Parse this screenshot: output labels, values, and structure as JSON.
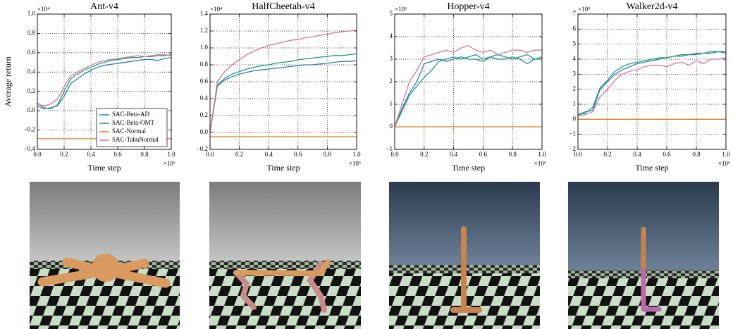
{
  "chart_data": [
    {
      "type": "line",
      "title": "Ant-v4",
      "xlabel": "Time step",
      "ylabel": "Average return",
      "x_multiplier": "×10⁶",
      "y_multiplier": "×10⁴",
      "x": [
        0,
        0.05,
        0.1,
        0.15,
        0.2,
        0.25,
        0.3,
        0.35,
        0.4,
        0.45,
        0.5,
        0.55,
        0.6,
        0.65,
        0.7,
        0.75,
        0.8,
        0.85,
        0.9,
        0.95,
        1.0
      ],
      "xlim": [
        0,
        1
      ],
      "xticks": [
        {
          "value": 0,
          "label": "0.0"
        },
        0.2,
        0.4,
        0.6,
        0.8,
        {
          "value": 1,
          "label": "1.0"
        }
      ],
      "ylim": [
        -0.4,
        1.0
      ],
      "yticks": [
        {
          "value": -0.4,
          "label": "−0.4"
        },
        {
          "value": -0.2,
          "label": "−0.2"
        },
        {
          "value": 0,
          "label": "0.0"
        },
        0.2,
        0.4,
        0.6,
        0.8,
        {
          "value": 1,
          "label": "1.0"
        }
      ],
      "grid": true,
      "legend": "lower right",
      "series": [
        {
          "name": "SAC-Beta-AD",
          "color": "#2e7db5",
          "values": [
            0.05,
            0.02,
            0.03,
            0.05,
            0.15,
            0.28,
            0.33,
            0.38,
            0.42,
            0.45,
            0.47,
            0.48,
            0.49,
            0.5,
            0.51,
            0.52,
            0.53,
            0.53,
            0.52,
            0.54,
            0.55
          ]
        },
        {
          "name": "SAC-Beta-OMT",
          "color": "#1a9e77",
          "values": [
            0.08,
            0.03,
            0.02,
            0.06,
            0.2,
            0.33,
            0.38,
            0.42,
            0.45,
            0.48,
            0.5,
            0.52,
            0.53,
            0.54,
            0.55,
            0.55,
            0.56,
            0.56,
            0.57,
            0.57,
            0.58
          ]
        },
        {
          "name": "SAC-Normal",
          "color": "#e6781e",
          "values": [
            -0.29,
            -0.29,
            -0.29,
            -0.29,
            -0.29,
            -0.29,
            -0.29,
            -0.29,
            -0.29,
            -0.29,
            -0.29,
            -0.29,
            -0.29,
            -0.29,
            -0.29,
            -0.29,
            -0.29,
            -0.29,
            -0.29,
            -0.29,
            -0.29
          ]
        },
        {
          "name": "SAC-TahnNormal",
          "color": "#d9739e",
          "values": [
            0.07,
            0.05,
            0.07,
            0.12,
            0.25,
            0.36,
            0.4,
            0.44,
            0.47,
            0.5,
            0.52,
            0.53,
            0.54,
            0.55,
            0.56,
            0.57,
            0.56,
            0.57,
            0.58,
            0.58,
            0.57
          ]
        }
      ]
    },
    {
      "type": "line",
      "title": "HalfCheetah-v4",
      "xlabel": "Time step",
      "x_multiplier": "×10⁶",
      "y_multiplier": "×10⁴",
      "x": [
        0,
        0.05,
        0.1,
        0.15,
        0.2,
        0.25,
        0.3,
        0.35,
        0.4,
        0.45,
        0.5,
        0.55,
        0.6,
        0.65,
        0.7,
        0.75,
        0.8,
        0.85,
        0.9,
        0.95,
        1.0
      ],
      "xlim": [
        0,
        1
      ],
      "xticks": [
        {
          "value": 0,
          "label": "0.0"
        },
        0.2,
        0.4,
        0.6,
        0.8,
        {
          "value": 1,
          "label": "1.0"
        }
      ],
      "ylim": [
        -0.2,
        1.4
      ],
      "yticks": [
        {
          "value": -0.2,
          "label": "−0.2"
        },
        {
          "value": 0,
          "label": "0.0"
        },
        0.2,
        0.4,
        0.6,
        0.8,
        {
          "value": 1,
          "label": "1.0"
        },
        1.2,
        1.4
      ],
      "grid": true,
      "series": [
        {
          "color": "#2e7db5",
          "values": [
            0,
            0.55,
            0.62,
            0.66,
            0.69,
            0.71,
            0.73,
            0.74,
            0.75,
            0.76,
            0.77,
            0.78,
            0.79,
            0.8,
            0.8,
            0.81,
            0.82,
            0.83,
            0.84,
            0.84,
            0.85
          ]
        },
        {
          "color": "#1a9e77",
          "values": [
            0,
            0.56,
            0.64,
            0.69,
            0.72,
            0.75,
            0.77,
            0.79,
            0.8,
            0.82,
            0.83,
            0.84,
            0.86,
            0.87,
            0.88,
            0.89,
            0.9,
            0.91,
            0.91,
            0.92,
            0.93
          ]
        },
        {
          "color": "#e6781e",
          "values": [
            -0.05,
            -0.05,
            -0.05,
            -0.05,
            -0.05,
            -0.05,
            -0.05,
            -0.05,
            -0.05,
            -0.05,
            -0.05,
            -0.05,
            -0.05,
            -0.05,
            -0.05,
            -0.05,
            -0.05,
            -0.05,
            -0.05,
            -0.05,
            -0.05
          ]
        },
        {
          "color": "#d9739e",
          "values": [
            0,
            0.6,
            0.72,
            0.8,
            0.86,
            0.92,
            0.96,
            1.0,
            1.03,
            1.05,
            1.07,
            1.09,
            1.1,
            1.12,
            1.13,
            1.15,
            1.16,
            1.18,
            1.19,
            1.2,
            1.21
          ]
        }
      ]
    },
    {
      "type": "line",
      "title": "Hopper-v4",
      "xlabel": "Time step",
      "x_multiplier": "×10⁶",
      "y_multiplier": "×10³",
      "x": [
        0,
        0.05,
        0.1,
        0.15,
        0.2,
        0.25,
        0.3,
        0.35,
        0.4,
        0.45,
        0.5,
        0.55,
        0.6,
        0.65,
        0.7,
        0.75,
        0.8,
        0.85,
        0.9,
        0.95,
        1.0
      ],
      "xlim": [
        0,
        1
      ],
      "xticks": [
        {
          "value": 0,
          "label": "0.0"
        },
        0.2,
        0.4,
        0.6,
        0.8,
        {
          "value": 1,
          "label": "1.0"
        }
      ],
      "ylim": [
        -1,
        5
      ],
      "yticks": [
        {
          "value": -1,
          "label": "−1"
        },
        0,
        1,
        2,
        3,
        4,
        5
      ],
      "grid": true,
      "series": [
        {
          "color": "#2e7db5",
          "values": [
            0,
            0.8,
            1.5,
            2.0,
            2.8,
            2.9,
            3.0,
            2.9,
            3.0,
            3.1,
            3.0,
            3.0,
            2.9,
            3.1,
            3.0,
            3.0,
            3.1,
            3.0,
            2.8,
            3.0,
            3.0
          ]
        },
        {
          "color": "#1a9e77",
          "values": [
            0,
            0.7,
            1.4,
            1.8,
            2.2,
            2.5,
            2.9,
            3.0,
            3.1,
            3.0,
            3.1,
            3.2,
            3.0,
            3.1,
            3.2,
            3.1,
            3.0,
            3.1,
            3.2,
            3.0,
            3.1
          ]
        },
        {
          "color": "#e6781e",
          "values": [
            0,
            0,
            0,
            0,
            0,
            0,
            0,
            0,
            0,
            0,
            0,
            0,
            0,
            0,
            0,
            0,
            0,
            0,
            0,
            0,
            0
          ]
        },
        {
          "color": "#d9739e",
          "values": [
            0,
            1.0,
            2.0,
            2.5,
            3.1,
            3.2,
            3.3,
            3.4,
            3.3,
            3.5,
            3.6,
            3.4,
            3.3,
            3.4,
            3.2,
            3.3,
            3.4,
            3.4,
            3.3,
            3.4,
            3.4
          ]
        }
      ]
    },
    {
      "type": "line",
      "title": "Walker2d-v4",
      "xlabel": "Time step",
      "x_multiplier": "×10⁶",
      "y_multiplier": "×10³",
      "x": [
        0,
        0.05,
        0.1,
        0.15,
        0.2,
        0.25,
        0.3,
        0.35,
        0.4,
        0.45,
        0.5,
        0.55,
        0.6,
        0.65,
        0.7,
        0.75,
        0.8,
        0.85,
        0.9,
        0.95,
        1.0
      ],
      "xlim": [
        0,
        1
      ],
      "xticks": [
        {
          "value": 0,
          "label": "0.0"
        },
        0.2,
        0.4,
        0.6,
        0.8,
        {
          "value": 1,
          "label": "1.0"
        }
      ],
      "ylim": [
        -2,
        7
      ],
      "yticks": [
        {
          "value": -2,
          "label": "−2"
        },
        {
          "value": -1,
          "label": "−1"
        },
        0,
        1,
        2,
        3,
        4,
        5,
        6,
        7
      ],
      "grid": true,
      "series": [
        {
          "color": "#2e7db5",
          "values": [
            0.3,
            0.5,
            0.6,
            2.0,
            2.5,
            3.0,
            3.3,
            3.5,
            3.7,
            3.8,
            3.9,
            4.0,
            4.1,
            4.2,
            4.2,
            4.3,
            4.3,
            4.4,
            4.4,
            4.5,
            4.5
          ]
        },
        {
          "color": "#1a9e77",
          "values": [
            0.3,
            0.4,
            0.8,
            2.1,
            2.6,
            3.2,
            3.5,
            3.7,
            3.8,
            3.9,
            4.0,
            4.1,
            4.1,
            4.2,
            4.3,
            4.3,
            4.4,
            4.4,
            4.5,
            4.5,
            4.4
          ]
        },
        {
          "color": "#e6781e",
          "values": [
            0,
            0,
            0,
            0,
            0,
            0,
            0,
            0,
            0,
            0,
            0,
            0,
            0,
            0,
            0,
            0,
            0,
            0,
            0,
            0,
            0
          ]
        },
        {
          "color": "#d9739e",
          "values": [
            0.2,
            0.3,
            0.5,
            1.5,
            2.0,
            2.6,
            3.0,
            3.2,
            3.3,
            3.5,
            3.6,
            3.6,
            3.5,
            3.7,
            3.8,
            3.6,
            3.9,
            3.7,
            4.0,
            4.0,
            4.1
          ]
        }
      ]
    }
  ]
}
